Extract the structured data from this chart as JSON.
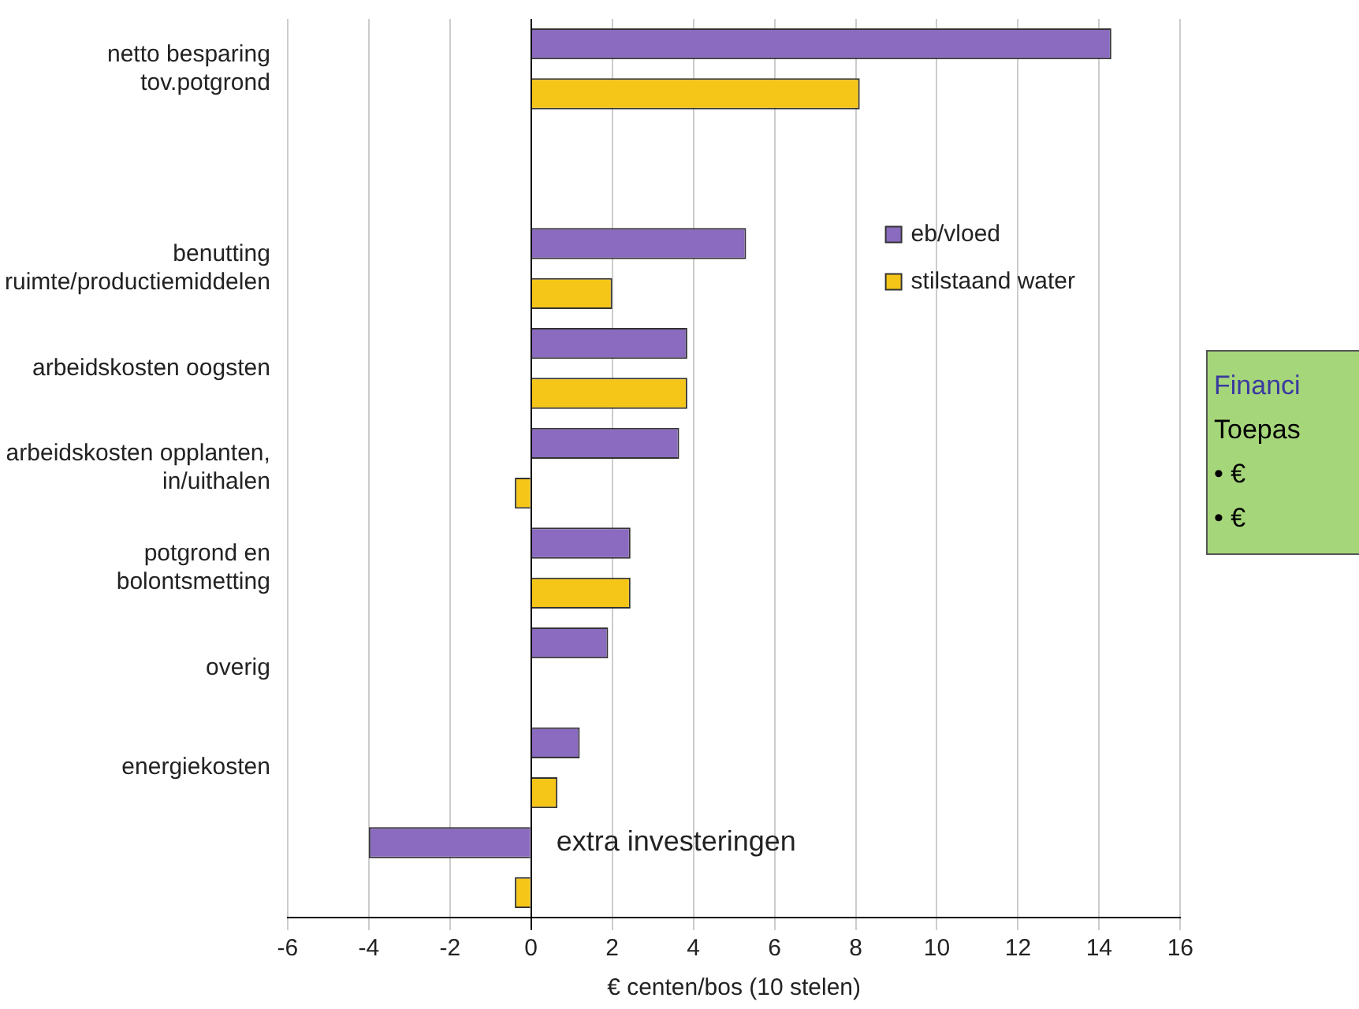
{
  "chart_data": {
    "type": "bar",
    "orientation": "horizontal",
    "xlabel": "€ centen/bos (10 stelen)",
    "categories": [
      "netto besparing tov.potgrond",
      null,
      "benutting ruimte/productiemiddelen",
      "arbeidskosten oogsten",
      "arbeidskosten opplanten, in/uithalen",
      "potgrond en bolontsmetting",
      "overig",
      "energiekosten",
      null
    ],
    "series": [
      {
        "name": "eb/vloed",
        "color": "#8a6bbf",
        "values": [
          14.3,
          null,
          5.3,
          3.85,
          3.65,
          2.45,
          1.9,
          1.2,
          -4.0
        ]
      },
      {
        "name": "stilstaand water",
        "color": "#f5c518",
        "values": [
          8.1,
          null,
          2.0,
          3.85,
          -0.4,
          2.45,
          null,
          0.65,
          -0.4
        ]
      }
    ],
    "xlim": [
      -6,
      16
    ],
    "xticks": [
      -6,
      -4,
      -2,
      0,
      2,
      4,
      6,
      8,
      10,
      12,
      14,
      16
    ],
    "grid": "x",
    "legend": "right",
    "annotations": [
      "extra investeringen",
      "Financi",
      "Toepas",
      "•  €",
      "•  €"
    ]
  }
}
